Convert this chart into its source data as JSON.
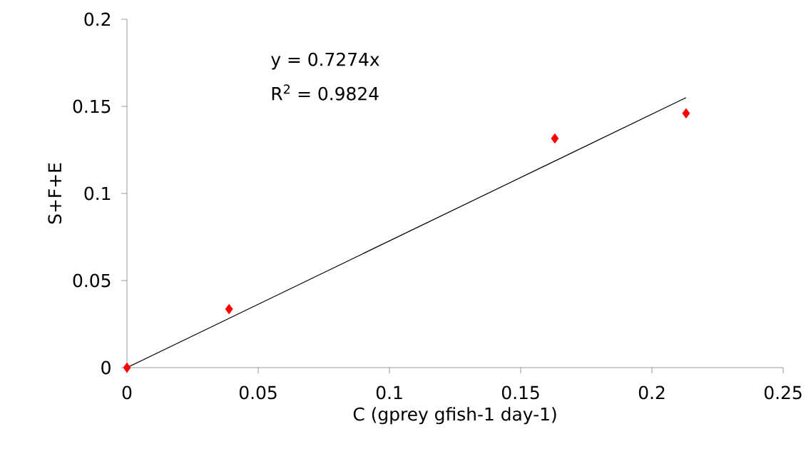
{
  "chart_data": {
    "type": "scatter",
    "xlabel": "C (gprey gfish-1 day-1)",
    "ylabel": "S+F+E",
    "annotations": [
      "y = 0.7274x",
      "R$^{2}$ = 0.9824"
    ],
    "series": [
      {
        "color": "#ff0000",
        "marker": "diamond",
        "x": [
          0,
          0.0389,
          0.163,
          0.213
        ],
        "values": [
          0,
          0.0336,
          0.1316,
          0.146
        ]
      },
      {
        "type": "line",
        "color": "#000000",
        "marker": "none",
        "line_style": "solid",
        "x": [
          0,
          0.213
        ],
        "values": [
          0,
          0.155
        ]
      }
    ],
    "xlim": [
      0,
      0.25
    ],
    "ylim": [
      0,
      0.2
    ],
    "xticks": [
      0,
      0.05,
      0.1,
      0.15,
      0.2,
      0.25
    ],
    "yticks": [
      0,
      0.05,
      0.1,
      0.15,
      0.2
    ]
  }
}
